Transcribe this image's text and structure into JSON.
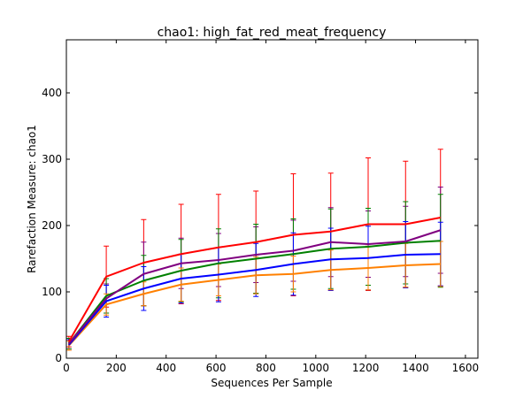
{
  "chart_data": {
    "type": "line",
    "title": "chao1: high_fat_red_meat_frequency",
    "xlabel": "Sequences Per Sample",
    "ylabel": "Rarefaction Measure: chao1",
    "xlim": [
      0,
      1650
    ],
    "ylim": [
      0,
      480
    ],
    "x_ticks": [
      0,
      200,
      400,
      600,
      800,
      1000,
      1200,
      1400,
      1600
    ],
    "y_ticks": [
      0,
      100,
      200,
      300,
      400
    ],
    "grid": false,
    "legend": "none",
    "x": [
      10,
      160,
      310,
      460,
      610,
      760,
      910,
      1060,
      1210,
      1360,
      1500
    ],
    "series": [
      {
        "color": "#ff0000",
        "values": [
          25,
          123,
          144,
          157,
          167,
          175,
          186,
          191,
          202,
          202,
          212
        ],
        "errors": [
          8,
          46,
          65,
          75,
          80,
          77,
          92,
          88,
          100,
          95,
          103
        ]
      },
      {
        "color": "#800080",
        "values": [
          22,
          90,
          127,
          143,
          148,
          156,
          162,
          175,
          172,
          176,
          193
        ],
        "errors": [
          8,
          22,
          48,
          38,
          40,
          42,
          46,
          52,
          50,
          53,
          65
        ]
      },
      {
        "color": "#008000",
        "values": [
          22,
          94,
          117,
          132,
          143,
          150,
          157,
          165,
          168,
          174,
          177
        ],
        "errors": [
          8,
          26,
          38,
          47,
          52,
          52,
          53,
          60,
          58,
          62,
          70
        ]
      },
      {
        "color": "#0000ff",
        "values": [
          20,
          86,
          105,
          120,
          126,
          133,
          142,
          149,
          151,
          156,
          157
        ],
        "errors": [
          8,
          24,
          33,
          37,
          41,
          40,
          47,
          47,
          48,
          50,
          48
        ]
      },
      {
        "color": "#ff8000",
        "values": [
          19,
          81,
          97,
          111,
          118,
          125,
          127,
          133,
          136,
          140,
          142
        ],
        "errors": [
          7,
          16,
          18,
          25,
          24,
          28,
          27,
          30,
          33,
          33,
          34
        ]
      }
    ]
  }
}
